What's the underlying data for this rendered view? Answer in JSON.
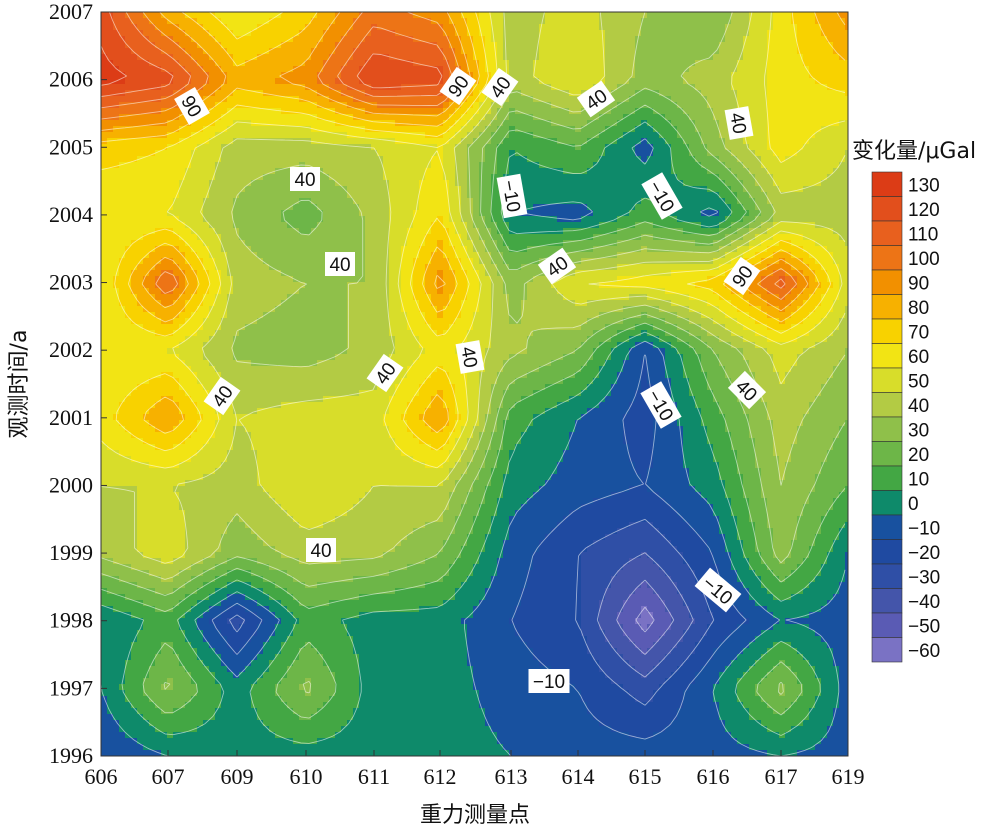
{
  "chart_data": {
    "type": "heatmap",
    "subtype": "filled-contour",
    "xlabel": "重力测量点",
    "ylabel": "观测时间/a",
    "colorbar_title": "变化量/μGal",
    "x": [
      "606",
      "607",
      "609",
      "610",
      "611",
      "612",
      "613",
      "614",
      "615",
      "616",
      "617",
      "619"
    ],
    "y": [
      1996,
      1997,
      1998,
      1999,
      2000,
      2001,
      2002,
      2003,
      2004,
      2005,
      2006,
      2007
    ],
    "z": [
      [
        -15,
        -5,
        0,
        0,
        0,
        0,
        -5,
        -10,
        -10,
        -10,
        -5,
        -10
      ],
      [
        -5,
        28,
        0,
        28,
        0,
        0,
        -10,
        -15,
        -30,
        -5,
        28,
        -10
      ],
      [
        -5,
        10,
        -30,
        10,
        0,
        0,
        -15,
        -25,
        -60,
        -25,
        -5,
        -10
      ],
      [
        38,
        52,
        28,
        40,
        38,
        25,
        -10,
        -25,
        -35,
        -15,
        30,
        -5
      ],
      [
        45,
        45,
        40,
        55,
        45,
        45,
        0,
        -10,
        -15,
        0,
        35,
        15
      ],
      [
        60,
        85,
        45,
        50,
        50,
        85,
        10,
        -5,
        -20,
        10,
        40,
        25
      ],
      [
        55,
        55,
        33,
        30,
        38,
        60,
        38,
        25,
        -15,
        25,
        50,
        35
      ],
      [
        55,
        105,
        40,
        35,
        35,
        90,
        30,
        55,
        60,
        70,
        110,
        50
      ],
      [
        55,
        55,
        33,
        20,
        38,
        65,
        -5,
        -10,
        10,
        -10,
        38,
        40
      ],
      [
        70,
        65,
        40,
        40,
        45,
        55,
        5,
        15,
        -10,
        30,
        60,
        45
      ],
      [
        130,
        120,
        80,
        90,
        125,
        120,
        40,
        55,
        30,
        40,
        60,
        70
      ],
      [
        120,
        80,
        55,
        70,
        100,
        90,
        40,
        50,
        35,
        25,
        60,
        90
      ]
    ],
    "levels": [
      -60,
      -50,
      -40,
      -30,
      -20,
      -10,
      0,
      10,
      20,
      30,
      40,
      50,
      60,
      70,
      80,
      90,
      100,
      110,
      120,
      130
    ],
    "colors": [
      "#7a72c4",
      "#5a5bb4",
      "#4455aa",
      "#2f4fa6",
      "#1f4aa1",
      "#18519f",
      "#0e8a6a",
      "#43a744",
      "#6db648",
      "#8fc04a",
      "#b3cb44",
      "#d8dd2a",
      "#f2e414",
      "#f8d200",
      "#f7b100",
      "#f29000",
      "#ed7416",
      "#e8601e",
      "#e24f1c",
      "#dc3c16"
    ],
    "colorbar_labels": [
      "130",
      "120",
      "110",
      "100",
      "90",
      "80",
      "70",
      "60",
      "50",
      "40",
      "30",
      "20",
      "10",
      "0",
      "−10",
      "−20",
      "−30",
      "−40",
      "−50",
      "−60"
    ],
    "contour_labels": [
      "90",
      "90",
      "40",
      "40",
      "40",
      "40",
      "40",
      "40",
      "40",
      "40",
      "40",
      "40",
      "90",
      "40",
      "−10",
      "−10",
      "−10",
      "−10",
      "−10",
      "40"
    ],
    "xlim": [
      "606",
      "619"
    ],
    "ylim": [
      1996,
      2007
    ],
    "colorbar_range": [
      -60,
      130
    ],
    "grid": false,
    "legend": "right"
  }
}
